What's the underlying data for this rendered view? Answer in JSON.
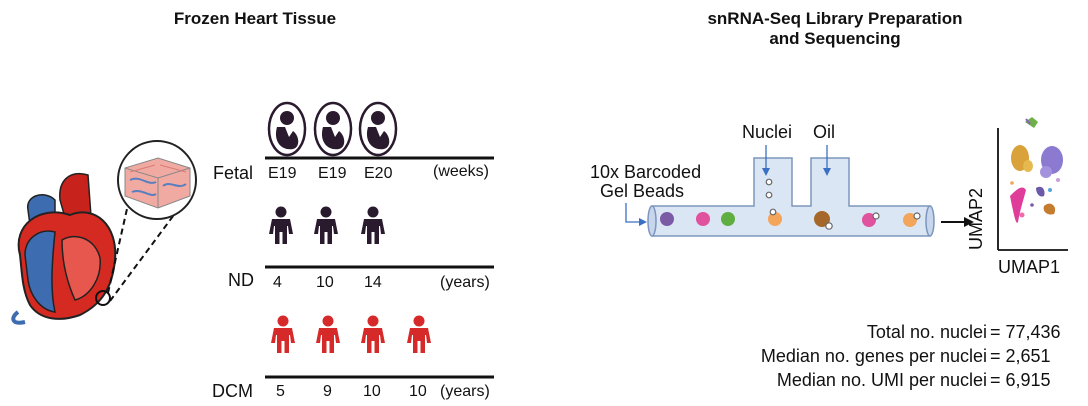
{
  "left_title": "Frozen Heart Tissue",
  "right_title_line1": "snRNA-Seq Library Preparation",
  "right_title_line2": "and Sequencing",
  "groups": {
    "fetal": {
      "label": "Fetal",
      "unit": "(weeks)",
      "ages": [
        "E19",
        "E19",
        "E20"
      ]
    },
    "nd": {
      "label": "ND",
      "unit": "(years)",
      "ages": [
        "4",
        "10",
        "14"
      ]
    },
    "dcm": {
      "label": "DCM",
      "unit": "(years)",
      "ages": [
        "5",
        "9",
        "10",
        "10"
      ]
    }
  },
  "microfluidics": {
    "beads_label_line1": "10x Barcoded",
    "beads_label_line2": "Gel Beads",
    "nuclei_label": "Nuclei",
    "oil_label": "Oil"
  },
  "umap": {
    "xlabel": "UMAP1",
    "ylabel": "UMAP2"
  },
  "stats": [
    {
      "label": "Total no. nuclei",
      "value": "= 77,436"
    },
    {
      "label": "Median no. genes per nuclei",
      "value": "= 2,651"
    },
    {
      "label": "Median no. UMI per nuclei",
      "value": "= 6,915"
    }
  ],
  "colors": {
    "fetal_icon": "#2a1a2e",
    "nd_icon": "#2a1a2e",
    "dcm_icon": "#d62a2a",
    "heart_red": "#d42a22",
    "heart_blue": "#3d6cb0",
    "tube_fill": "#dbe6f4",
    "tube_stroke": "#7d95bd",
    "arrow_blue": "#3a6fc4"
  }
}
